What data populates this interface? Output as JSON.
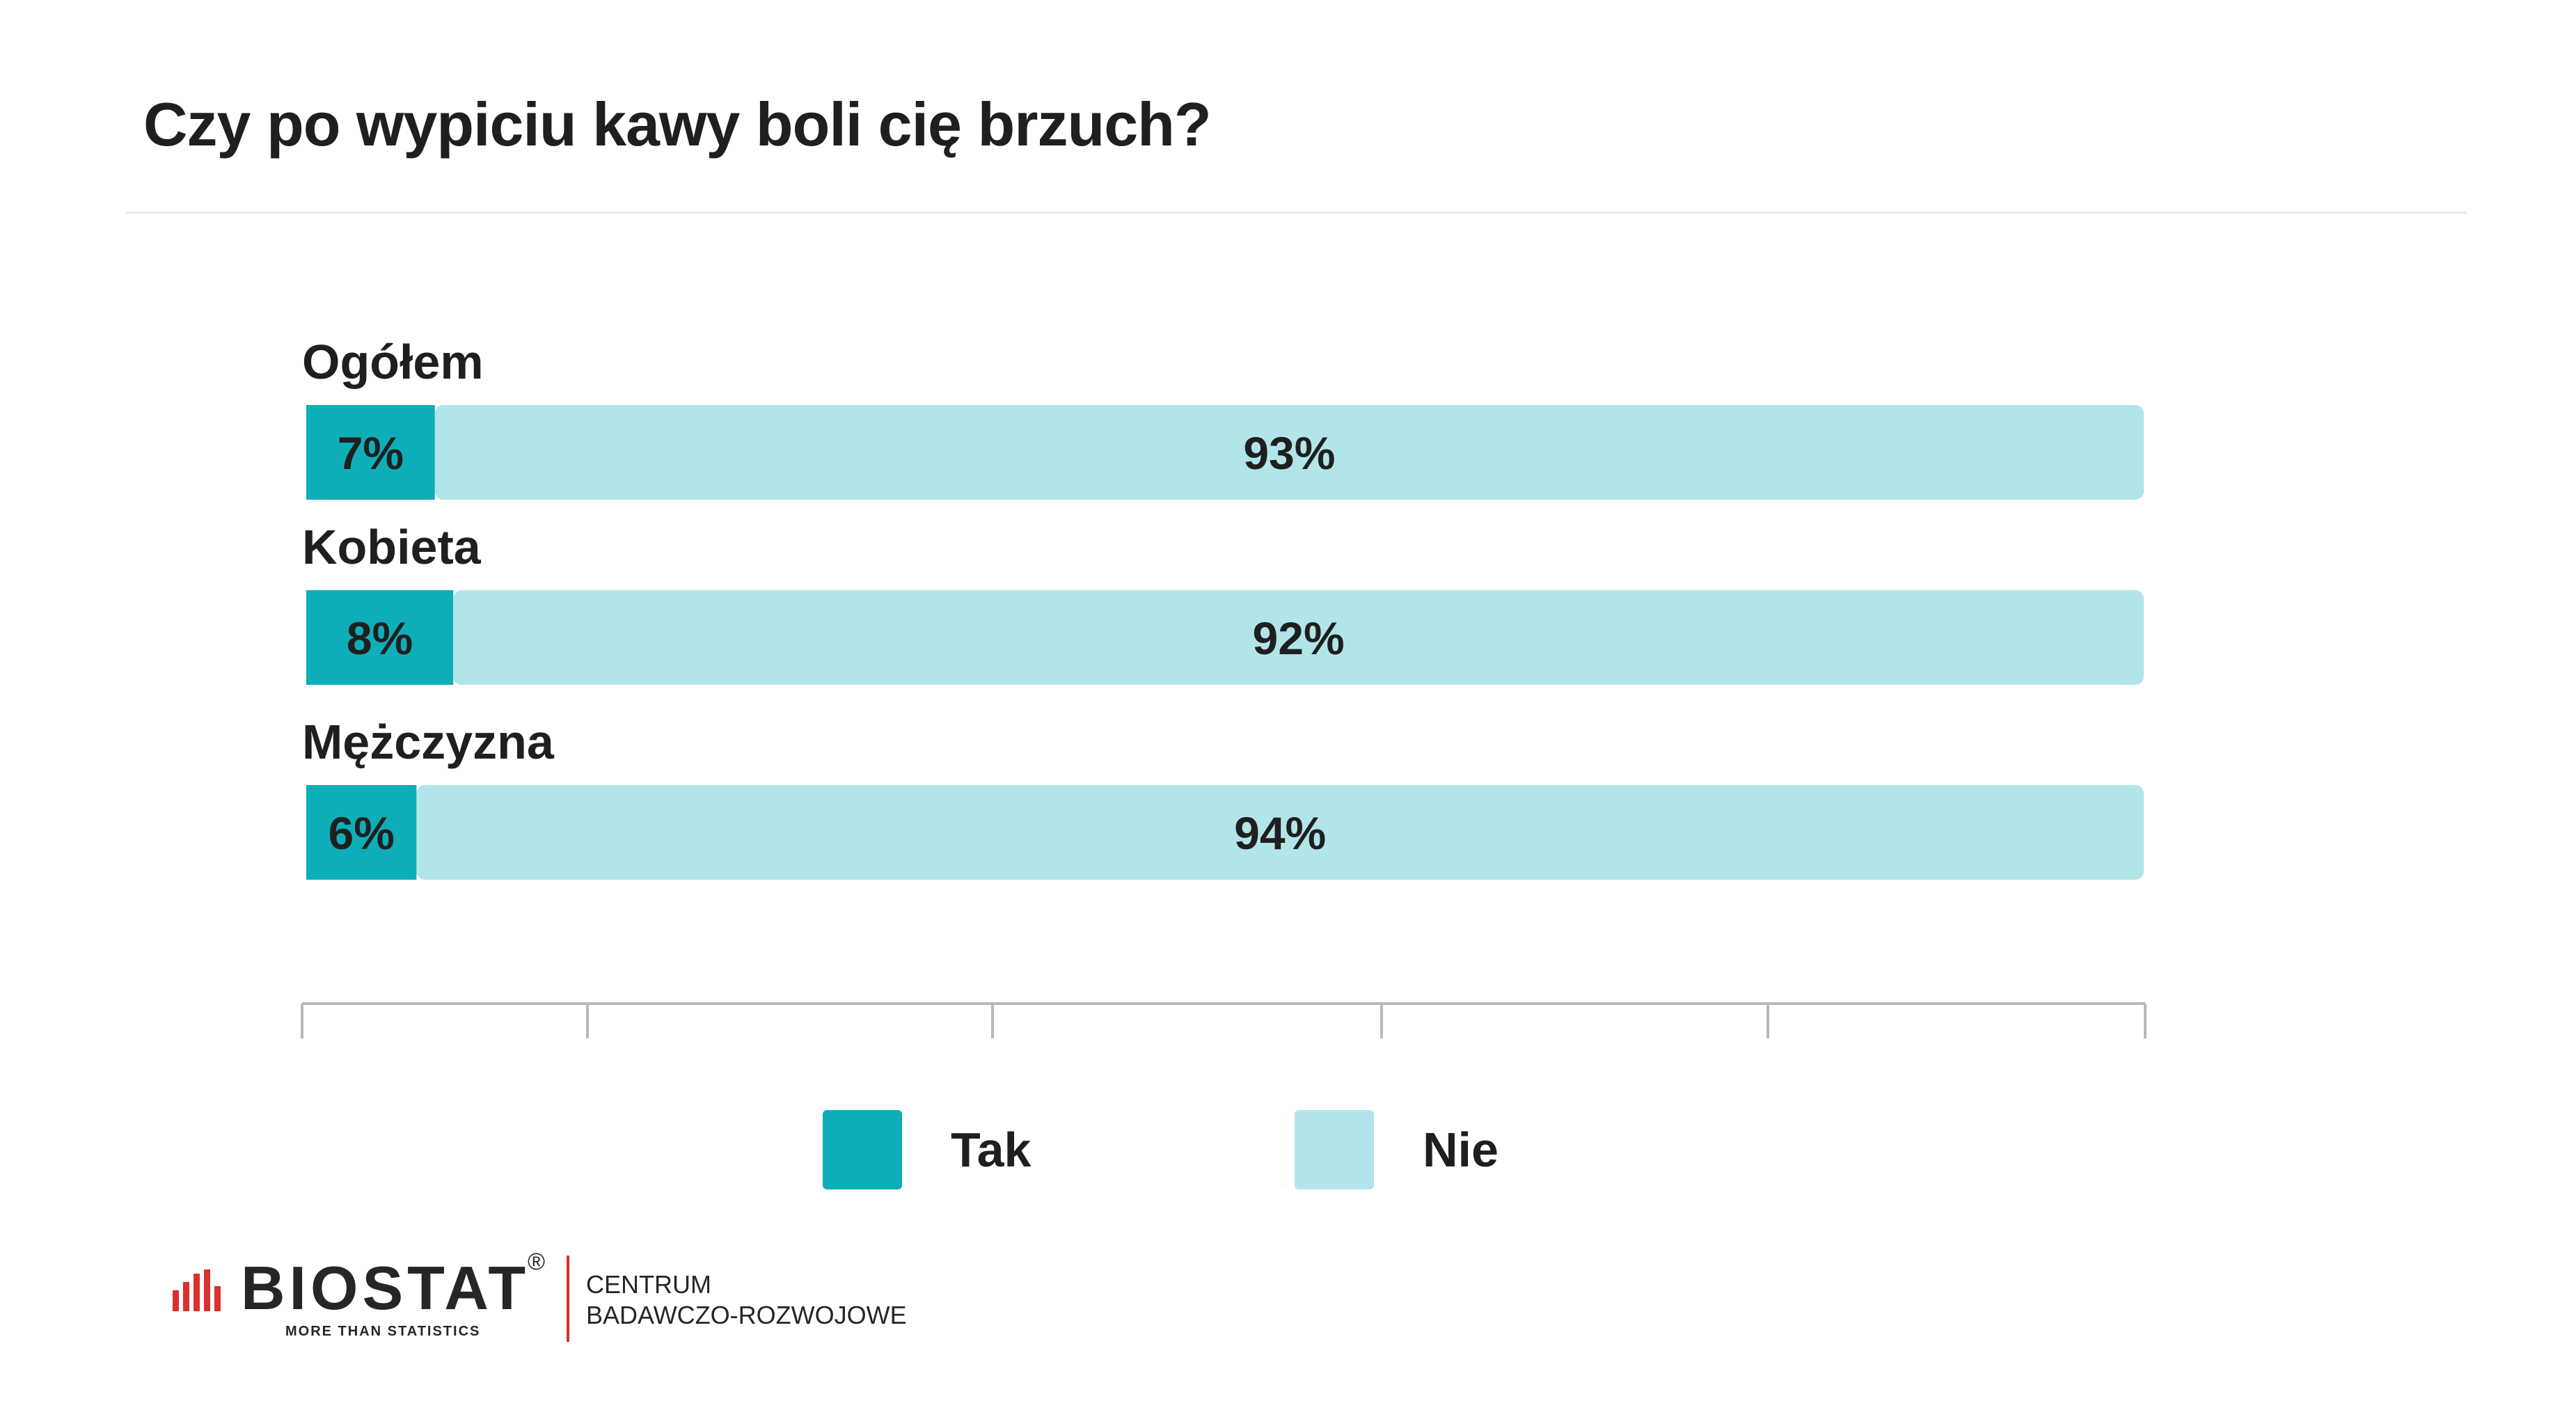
{
  "title": "Czy po wypiciu kawy boli cię brzuch?",
  "chart_data": {
    "type": "bar",
    "orientation": "horizontal",
    "stacked": true,
    "categories": [
      "Ogółem",
      "Kobieta",
      "Mężczyzna"
    ],
    "series": [
      {
        "name": "Tak",
        "values": [
          7,
          8,
          6
        ],
        "labels": [
          "7%",
          "8%",
          "6%"
        ],
        "color": "#0eaeb9"
      },
      {
        "name": "Nie",
        "values": [
          93,
          92,
          94
        ],
        "labels": [
          "93%",
          "92%",
          "94%"
        ],
        "color": "#b1e5e9"
      }
    ],
    "xlim": [
      0,
      100
    ],
    "unit": "%",
    "grid": false,
    "legend_position": "bottom-center"
  },
  "logo": {
    "name": "BIOSTAT",
    "registered": "®",
    "tagline": "MORE THAN STATISTICS",
    "division_line1": "CENTRUM",
    "division_line2": "BADAWCZO-ROZWOJOWE",
    "accent_color": "#d8302e"
  }
}
